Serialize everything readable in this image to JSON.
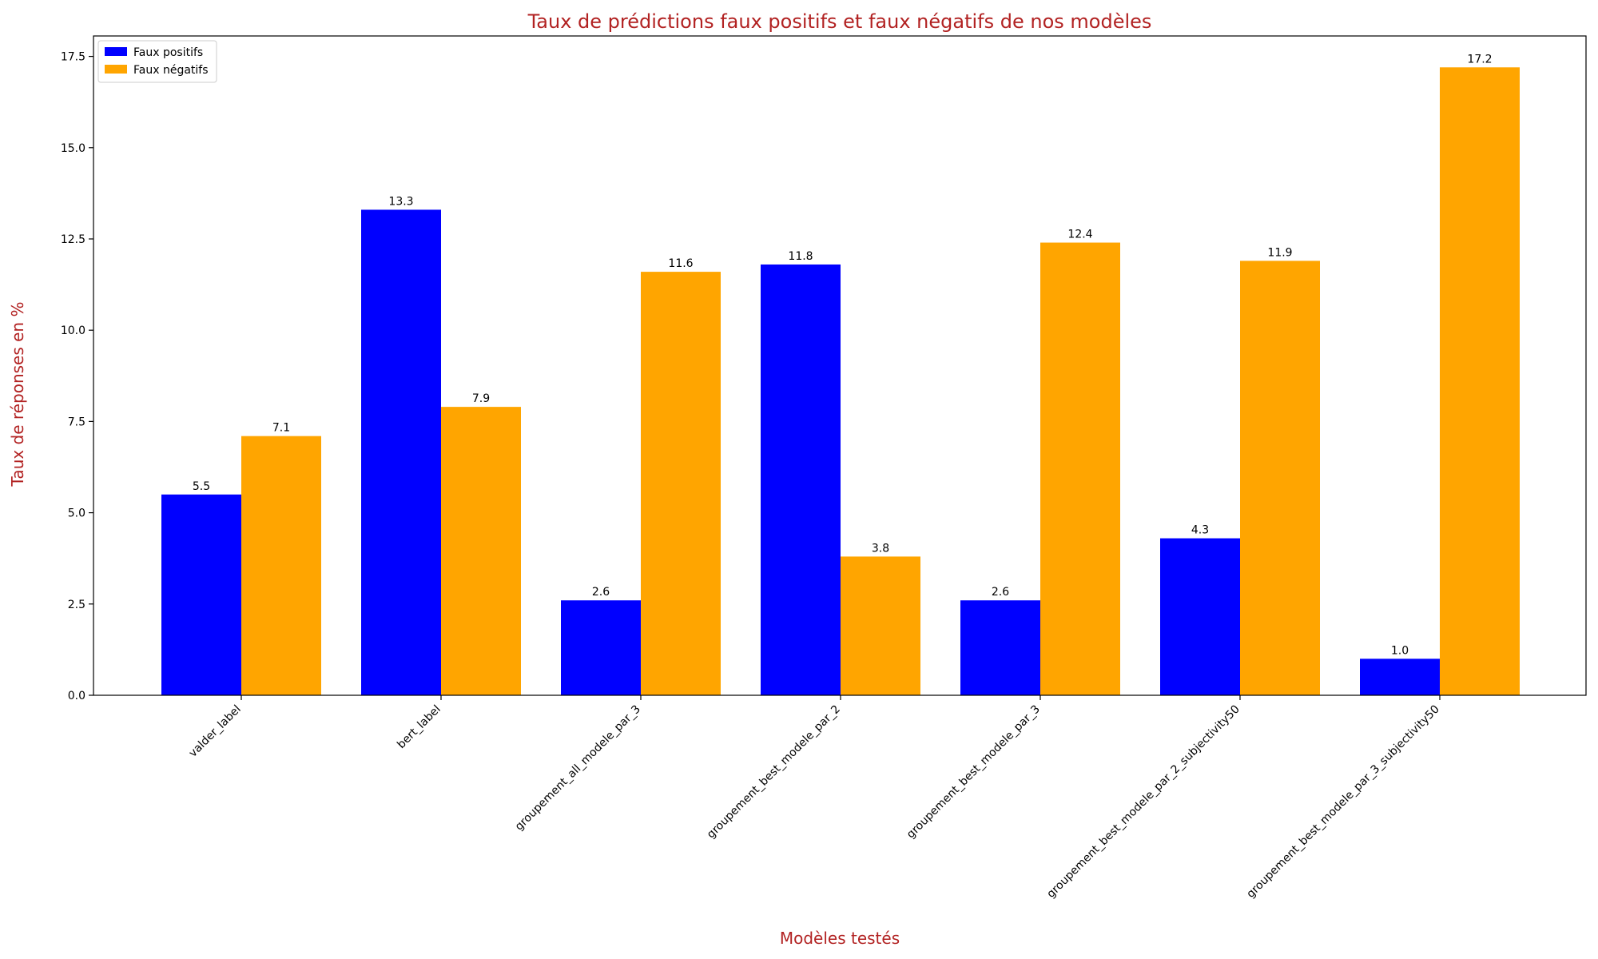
{
  "chart_data": {
    "type": "bar",
    "title": "Taux de prédictions faux positifs et faux négatifs de nos modèles",
    "xlabel": "Modèles testés",
    "ylabel": "Taux de réponses en %",
    "categories": [
      "valder_label",
      "bert_label",
      "groupement_all_modele_par_3",
      "groupement_best_modele_par_2",
      "groupement_best_modele_par_3",
      "groupement_best_modele_par_2_subjectivity50",
      "groupement_best_modele_par_3_subjectivity50"
    ],
    "series": [
      {
        "name": "Faux positifs",
        "color": "#0000ff",
        "values": [
          5.5,
          13.3,
          2.6,
          11.8,
          2.6,
          4.3,
          1.0
        ]
      },
      {
        "name": "Faux négatifs",
        "color": "#ffa500",
        "values": [
          7.1,
          7.9,
          11.6,
          3.8,
          12.4,
          11.9,
          17.2
        ]
      }
    ],
    "ylim": [
      0,
      18.06
    ],
    "yticks": [
      "0.0",
      "2.5",
      "5.0",
      "7.5",
      "10.0",
      "12.5",
      "15.0",
      "17.5"
    ],
    "legend_position": "top-left",
    "grid": false
  }
}
